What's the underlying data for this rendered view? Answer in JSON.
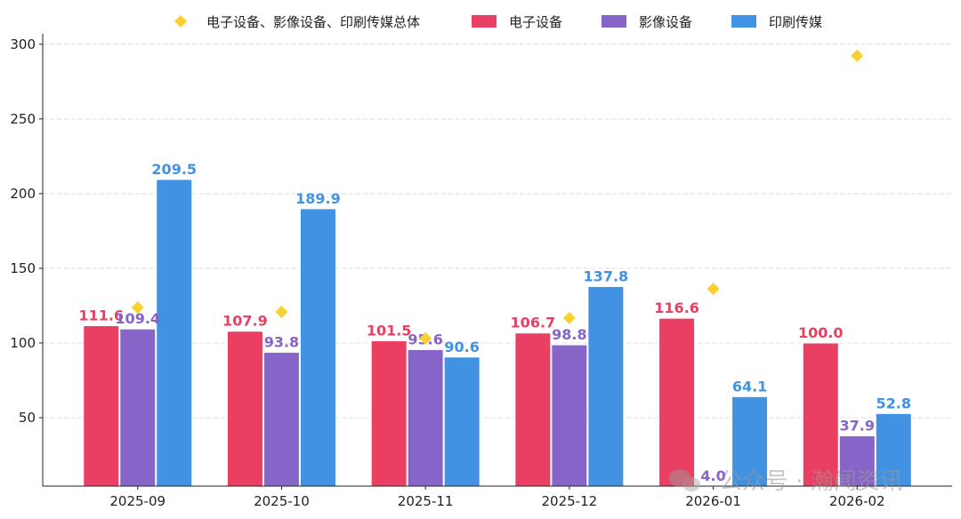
{
  "chart_data": {
    "type": "bar",
    "title": "",
    "xlabel": "",
    "ylabel": "",
    "categories": [
      "2025-09",
      "2025-10",
      "2025-11",
      "2025-12",
      "2026-01",
      "2026-02"
    ],
    "series": [
      {
        "name": "电子设备",
        "kind": "bar",
        "color": "#EA3F63",
        "values": [
          111.6,
          107.9,
          101.5,
          106.7,
          116.6,
          100.0
        ],
        "labels": [
          "111.6",
          "107.9",
          "101.5",
          "106.7",
          "116.6",
          "100.0"
        ]
      },
      {
        "name": "影像设备",
        "kind": "bar",
        "color": "#8764C8",
        "values": [
          109.4,
          93.8,
          95.6,
          98.8,
          4.0,
          37.9
        ],
        "labels": [
          "109.4",
          "93.8",
          "95.6",
          "98.8",
          "4.0",
          "37.9"
        ]
      },
      {
        "name": "印刷传媒",
        "kind": "bar",
        "color": "#4192E2",
        "values": [
          209.5,
          189.9,
          90.6,
          137.8,
          64.1,
          52.8
        ],
        "labels": [
          "209.5",
          "189.9",
          "90.6",
          "137.8",
          "64.1",
          "52.8"
        ]
      },
      {
        "name": "电子设备、影像设备、印刷传媒总体",
        "kind": "scatter",
        "marker": "diamond",
        "color": "#F9D030",
        "values": [
          123.8,
          120.8,
          103.0,
          116.7,
          136.3,
          292.3
        ]
      }
    ],
    "legend_order": [
      3,
      0,
      1,
      2
    ],
    "legend_position": "top-center",
    "ylim": [
      4.2,
      307
    ],
    "yticks": [
      "50",
      "100",
      "150",
      "200",
      "250",
      "300"
    ],
    "grid": "horizontal dashed"
  },
  "watermark": "公众号 · 瀚闻资讯"
}
